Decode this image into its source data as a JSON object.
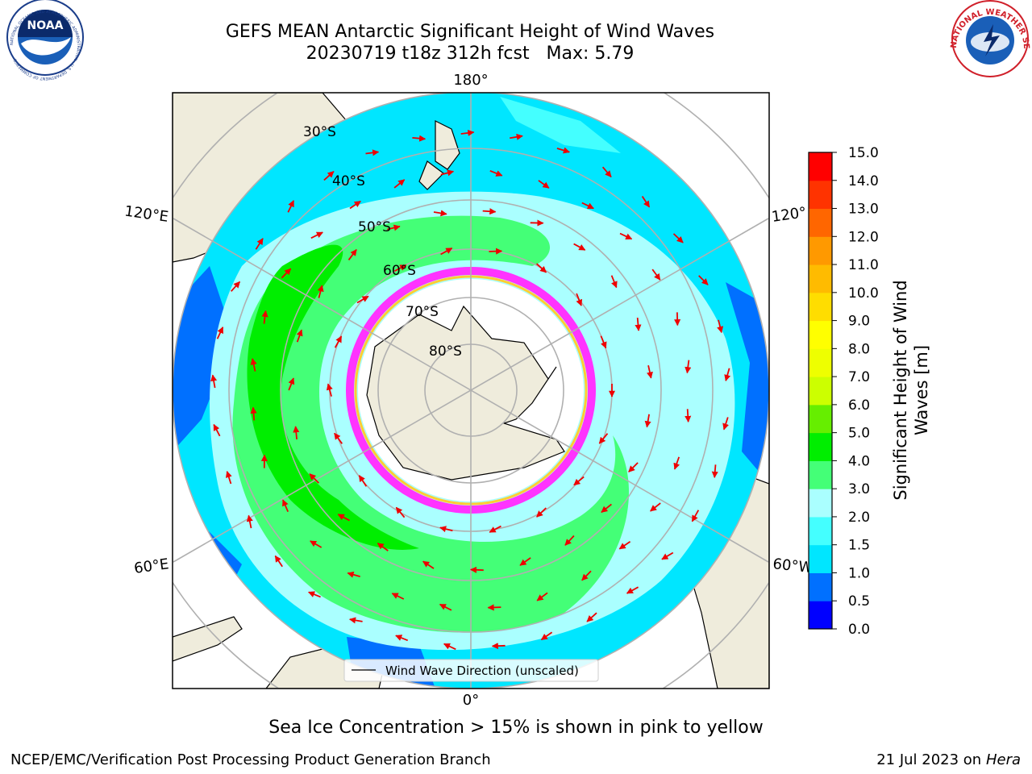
{
  "header": {
    "title_line1": "GEFS MEAN Antarctic Significant Height of Wind Waves",
    "title_line2": "20230719 t18z 312h fcst   Max: 5.79"
  },
  "map": {
    "projection": "south-polar-stereographic",
    "lon_labels": {
      "top": "180°",
      "bottom": "0°",
      "upper_left": "120°E",
      "upper_right": "120°",
      "lower_left": "60°E",
      "lower_right": "60°W"
    },
    "lat_labels": [
      "30°S",
      "40°S",
      "50°S",
      "60°S",
      "70°S",
      "80°S"
    ],
    "legend_label": "Wind Wave Direction (unscaled)",
    "arrow_color": "#ee0000",
    "land_color": "#efecdc",
    "ice_colors": [
      "#ff33ff",
      "#ffcc33"
    ]
  },
  "colorbar": {
    "label_line1": "Significant Height of Wind",
    "label_line2": "Waves [m]",
    "ticks": [
      "0.0",
      "0.5",
      "1.0",
      "1.5",
      "2.0",
      "3.0",
      "4.0",
      "5.0",
      "6.0",
      "7.0",
      "8.0",
      "9.0",
      "10.0",
      "11.0",
      "12.0",
      "13.0",
      "14.0",
      "15.0"
    ],
    "colors": [
      "#0000ff",
      "#0070ff",
      "#00e6ff",
      "#44ffff",
      "#aaffff",
      "#44ff77",
      "#00ee00",
      "#66ee00",
      "#ccff00",
      "#eeff00",
      "#ffff00",
      "#ffdd00",
      "#ffbb00",
      "#ff9900",
      "#ff6600",
      "#ff3300",
      "#ff0000"
    ]
  },
  "footer": {
    "note": "Sea Ice Concentration > 15% is shown in pink to yellow",
    "credit": "NCEP/EMC/Verification Post Processing Product Generation Branch",
    "date": "21 Jul 2023 on",
    "machine": "Hera"
  },
  "logos": {
    "left_abbrev": "NOAA",
    "left_ring": "NATIONAL OCEANIC AND ATMOSPHERIC ADMINISTRATION · U.S. DEPARTMENT OF COMMERCE",
    "right_ring": "NATIONAL WEATHER SERVICE"
  }
}
